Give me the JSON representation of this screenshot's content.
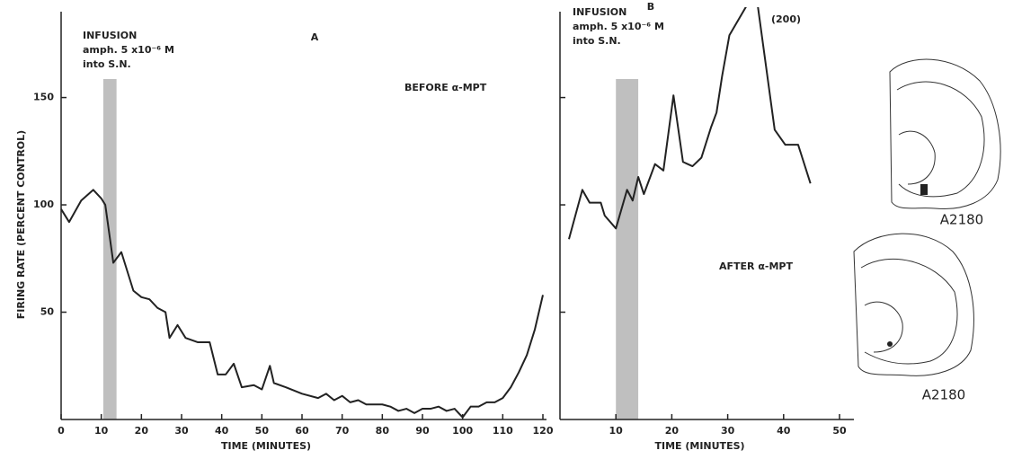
{
  "chart_data": [
    {
      "type": "line",
      "panel": "A",
      "x_label": "TIME (MINUTES)",
      "y_label": "FIRING RATE (PERCENT CONTROL)",
      "annotations": [
        "INFUSION",
        "amph. 5 x10⁻⁶ M",
        "into S.N.",
        "BEFORE α-MPT"
      ],
      "shade": [
        10.5,
        13.8
      ],
      "shade_color": "#aaaaaa",
      "color": "#222222",
      "x": [
        0,
        2,
        5,
        8,
        10,
        11,
        13,
        15,
        18,
        20,
        22,
        24,
        26,
        27,
        29,
        31,
        34,
        37,
        39,
        41,
        43,
        45,
        48,
        50,
        52,
        53,
        56,
        60,
        64,
        66,
        68,
        70,
        72,
        74,
        76,
        80,
        82,
        84,
        86,
        88,
        90,
        92,
        94,
        96,
        98,
        100,
        102,
        104,
        106,
        108,
        110,
        112,
        114,
        116,
        118,
        120
      ],
      "values": [
        98,
        92,
        102,
        107,
        103,
        100,
        73,
        78,
        60,
        57,
        56,
        52,
        50,
        38,
        44,
        38,
        36,
        36,
        21,
        21,
        26,
        15,
        16,
        14,
        25,
        17,
        15,
        12,
        10,
        12,
        9,
        11,
        8,
        9,
        7,
        7,
        6,
        4,
        5,
        3,
        5,
        5,
        6,
        4,
        5,
        1,
        6,
        6,
        8,
        8,
        10,
        15,
        22,
        30,
        42,
        58
      ],
      "xlim": [
        0,
        120
      ],
      "ylim": [
        0,
        190
      ],
      "xticks": [
        0,
        10,
        20,
        30,
        40,
        50,
        60,
        70,
        80,
        90,
        100,
        110,
        120
      ],
      "yticks": [
        50,
        100,
        150
      ],
      "ytick_labels": true
    },
    {
      "type": "line",
      "panel": "B",
      "x_label": "TIME (MINUTES)",
      "annotations": [
        "INFUSION",
        "amph. 5 x10⁻⁶ M",
        "into S.N.",
        "(200)",
        "AFTER α-MPT"
      ],
      "shade": [
        10,
        14
      ],
      "shade_color": "#aaaaaa",
      "color": "#222222",
      "x": [
        1.6,
        4,
        5.3,
        7.3,
        8,
        10,
        12,
        13,
        14,
        15,
        17,
        18.5,
        20.3,
        22,
        23.7,
        25.3,
        27,
        28,
        29,
        30.3,
        35,
        38.4,
        40.3,
        42.6,
        44.8
      ],
      "values": [
        84,
        107,
        101,
        101,
        95,
        89,
        107,
        102,
        113,
        105,
        119,
        116,
        151,
        120,
        118,
        122,
        136,
        143,
        160,
        179,
        200,
        135,
        128,
        128,
        110
      ],
      "xlim": [
        0,
        50
      ],
      "ylim": [
        0,
        190
      ],
      "xticks": [
        10,
        20,
        30,
        40,
        50
      ],
      "yticks": [
        50,
        100,
        150
      ],
      "ytick_labels": false
    }
  ],
  "sections": [
    "A2180",
    "A2180"
  ]
}
